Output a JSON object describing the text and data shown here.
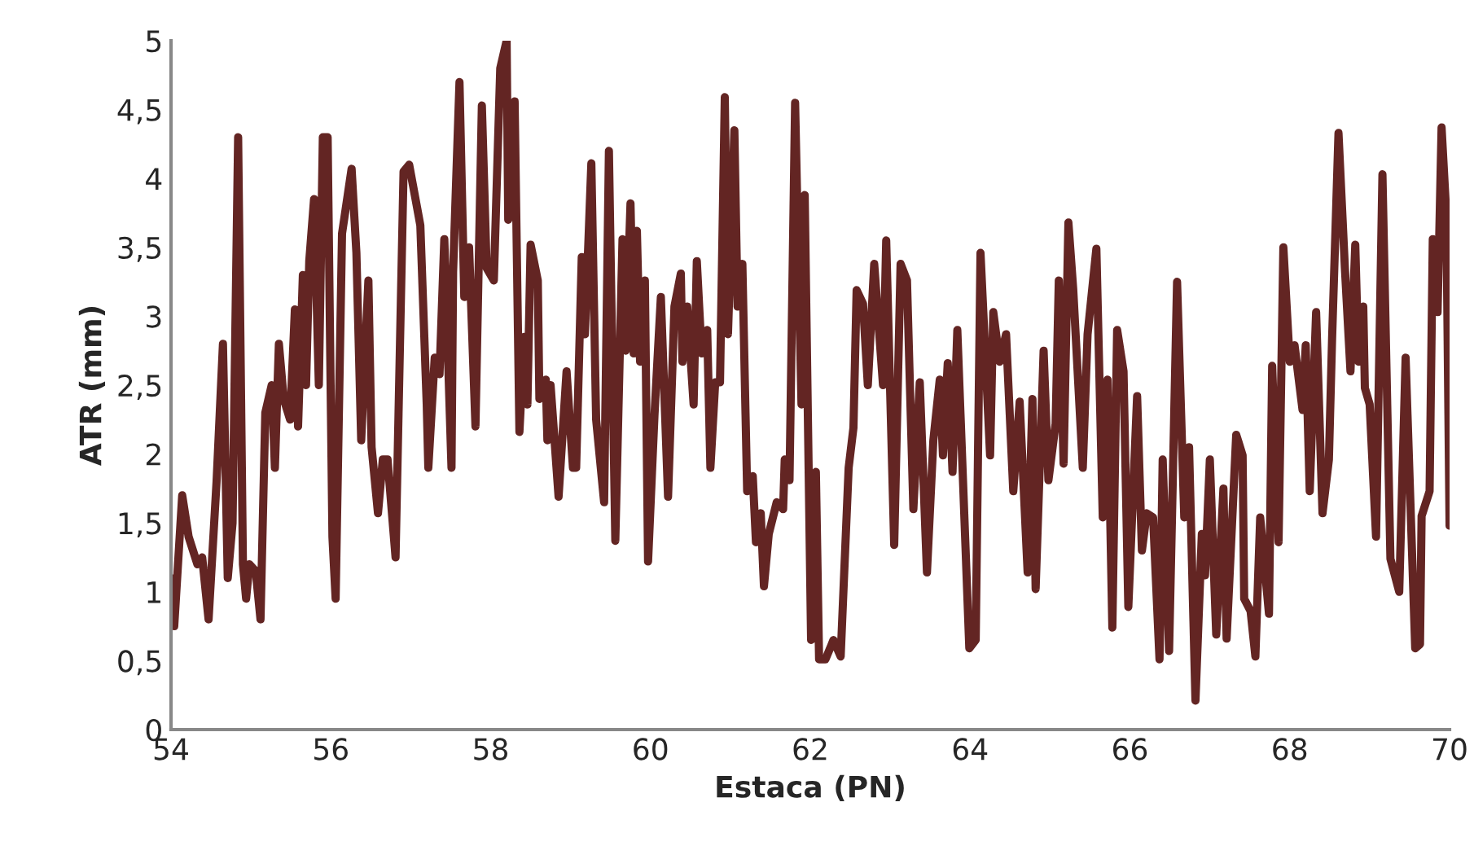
{
  "chart_data": {
    "type": "line",
    "xlabel": "Estaca (PN)",
    "ylabel": "ATR (mm)",
    "xlim": [
      54,
      70
    ],
    "xticks": [
      54,
      56,
      58,
      60,
      62,
      64,
      66,
      68,
      70
    ],
    "ylim": [
      0,
      5
    ],
    "yticks": [
      0,
      {
        "value": 0.5,
        "label": "0,5"
      },
      1,
      {
        "value": 1.5,
        "label": "1,5"
      },
      2,
      {
        "value": 2.5,
        "label": "2,5"
      },
      3,
      {
        "value": 3.5,
        "label": "3,5"
      },
      4,
      {
        "value": 4.5,
        "label": "4,5"
      },
      5
    ],
    "grid": false,
    "legend": false,
    "marker": "none",
    "line_style": "solid",
    "series": [
      {
        "color": "#632523",
        "x": [
          54.0,
          54.04,
          54.14,
          54.22,
          54.33,
          54.39,
          54.47,
          54.57,
          54.65,
          54.71,
          54.77,
          54.84,
          54.9,
          54.94,
          54.98,
          55.06,
          55.12,
          55.18,
          55.26,
          55.3,
          55.35,
          55.41,
          55.49,
          55.55,
          55.59,
          55.65,
          55.69,
          55.73,
          55.79,
          55.85,
          55.9,
          55.96,
          56.02,
          56.06,
          56.14,
          56.26,
          56.32,
          56.38,
          56.47,
          56.51,
          56.59,
          56.65,
          56.71,
          56.81,
          56.91,
          56.98,
          57.06,
          57.12,
          57.2,
          57.22,
          57.3,
          57.36,
          57.42,
          57.51,
          57.53,
          57.61,
          57.67,
          57.73,
          57.81,
          57.89,
          57.95,
          58.04,
          58.12,
          58.2,
          58.22,
          58.3,
          58.36,
          58.42,
          58.46,
          58.5,
          58.59,
          58.61,
          58.69,
          58.71,
          58.75,
          58.85,
          58.95,
          59.03,
          59.07,
          59.14,
          59.18,
          59.26,
          59.32,
          59.42,
          59.48,
          59.56,
          59.65,
          59.69,
          59.75,
          59.79,
          59.83,
          59.87,
          59.93,
          59.97,
          60.05,
          60.13,
          60.22,
          60.3,
          60.38,
          60.4,
          60.46,
          60.54,
          60.58,
          60.64,
          60.71,
          60.75,
          60.81,
          60.87,
          60.93,
          60.97,
          61.05,
          61.09,
          61.15,
          61.21,
          61.28,
          61.32,
          61.38,
          61.42,
          61.48,
          61.58,
          61.66,
          61.68,
          61.74,
          61.81,
          61.89,
          61.93,
          62.01,
          62.07,
          62.11,
          62.19,
          62.29,
          62.38,
          62.48,
          62.54,
          62.58,
          62.66,
          62.72,
          62.8,
          62.91,
          62.95,
          63.05,
          63.13,
          63.21,
          63.29,
          63.37,
          63.46,
          63.54,
          63.62,
          63.66,
          63.72,
          63.78,
          63.84,
          63.99,
          64.07,
          64.13,
          64.25,
          64.29,
          64.37,
          64.45,
          64.54,
          64.62,
          64.72,
          64.78,
          64.82,
          64.92,
          64.98,
          65.07,
          65.11,
          65.17,
          65.23,
          65.29,
          65.41,
          65.47,
          65.58,
          65.66,
          65.72,
          65.78,
          65.84,
          65.92,
          65.98,
          66.09,
          66.15,
          66.21,
          66.29,
          66.37,
          66.41,
          66.49,
          66.59,
          66.68,
          66.74,
          66.82,
          66.9,
          66.94,
          67.0,
          67.08,
          67.17,
          67.21,
          67.33,
          67.41,
          67.43,
          67.51,
          67.57,
          67.63,
          67.74,
          67.78,
          67.86,
          67.92,
          68.0,
          68.06,
          68.16,
          68.2,
          68.25,
          68.33,
          68.41,
          68.49,
          68.53,
          68.61,
          68.69,
          68.76,
          68.82,
          68.86,
          68.92,
          68.94,
          69.0,
          69.08,
          69.16,
          69.26,
          69.37,
          69.45,
          69.57,
          69.63,
          69.65,
          69.75,
          69.79,
          69.85,
          69.9,
          69.96,
          70.0
        ],
        "values": [
          1.1,
          0.75,
          1.7,
          1.4,
          1.2,
          1.25,
          0.8,
          1.8,
          2.8,
          1.1,
          1.5,
          4.3,
          1.2,
          0.95,
          1.2,
          1.15,
          0.8,
          2.3,
          2.5,
          1.9,
          2.8,
          2.4,
          2.25,
          3.05,
          2.2,
          3.3,
          2.5,
          3.4,
          3.85,
          2.5,
          4.3,
          4.3,
          1.4,
          0.95,
          3.6,
          4.07,
          3.46,
          2.1,
          3.26,
          2.05,
          1.57,
          1.96,
          1.96,
          1.25,
          4.05,
          4.1,
          3.85,
          3.66,
          2.36,
          1.9,
          2.7,
          2.58,
          3.56,
          1.9,
          3.32,
          4.7,
          3.14,
          3.5,
          2.2,
          4.53,
          3.35,
          3.26,
          4.8,
          5.0,
          3.7,
          4.56,
          2.16,
          2.85,
          2.36,
          3.52,
          3.26,
          2.4,
          2.54,
          2.1,
          2.5,
          1.69,
          2.6,
          1.9,
          1.9,
          3.43,
          2.87,
          4.11,
          2.25,
          1.65,
          4.2,
          1.37,
          3.56,
          2.75,
          3.82,
          2.73,
          3.62,
          2.67,
          3.26,
          1.22,
          2.28,
          3.14,
          1.69,
          3.07,
          3.31,
          2.67,
          3.07,
          2.36,
          3.4,
          2.73,
          2.9,
          1.9,
          2.52,
          2.52,
          4.59,
          2.87,
          4.35,
          3.07,
          3.38,
          1.73,
          1.84,
          1.36,
          1.57,
          1.04,
          1.42,
          1.65,
          1.6,
          1.96,
          1.81,
          4.55,
          2.36,
          3.88,
          0.65,
          1.87,
          0.51,
          0.51,
          0.65,
          0.53,
          1.9,
          2.19,
          3.19,
          3.09,
          2.5,
          3.38,
          2.5,
          3.55,
          1.34,
          3.38,
          3.26,
          1.6,
          2.52,
          1.14,
          2.1,
          2.54,
          1.99,
          2.66,
          1.87,
          2.9,
          0.59,
          0.65,
          3.46,
          1.99,
          3.03,
          2.67,
          2.87,
          1.73,
          2.38,
          1.14,
          2.4,
          1.02,
          2.75,
          1.81,
          2.22,
          3.26,
          1.93,
          3.68,
          3.2,
          1.9,
          2.87,
          3.49,
          1.54,
          2.54,
          0.74,
          2.9,
          2.6,
          0.89,
          2.42,
          1.3,
          1.57,
          1.54,
          0.51,
          1.96,
          0.57,
          3.25,
          1.54,
          2.05,
          0.21,
          1.42,
          1.12,
          1.96,
          0.69,
          1.75,
          0.66,
          2.14,
          1.99,
          0.95,
          0.86,
          0.53,
          1.54,
          0.84,
          2.64,
          1.36,
          3.5,
          2.67,
          2.79,
          2.32,
          2.79,
          1.73,
          3.03,
          1.57,
          1.96,
          2.84,
          4.33,
          3.35,
          2.6,
          3.52,
          2.67,
          3.07,
          2.48,
          2.36,
          1.4,
          4.03,
          1.24,
          1.0,
          2.7,
          0.59,
          0.62,
          1.55,
          1.73,
          3.56,
          3.03,
          4.37,
          3.73,
          1.48
        ]
      }
    ]
  }
}
